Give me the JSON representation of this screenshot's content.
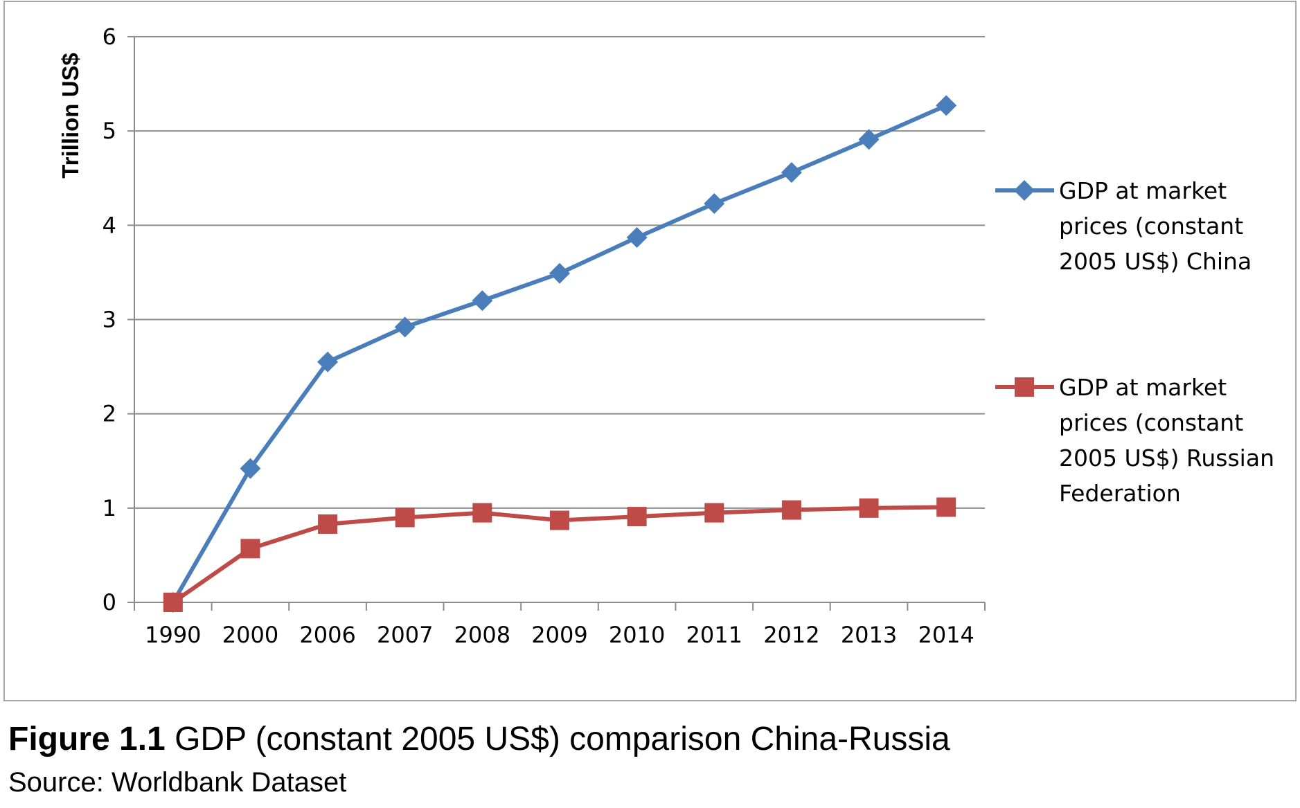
{
  "chart_data": {
    "type": "line",
    "title": "",
    "xlabel": "",
    "ylabel": "Trillion US$",
    "categories": [
      "1990",
      "2000",
      "2006",
      "2007",
      "2008",
      "2009",
      "2010",
      "2011",
      "2012",
      "2013",
      "2014"
    ],
    "ylim": [
      0,
      6
    ],
    "yticks": [
      0,
      1,
      2,
      3,
      4,
      5,
      6
    ],
    "grid": true,
    "legend_position": "right",
    "series": [
      {
        "name": "GDP at market prices (constant 2005 US$) China",
        "legend_lines": [
          "GDP at market",
          "prices (constant",
          "2005 US$) China"
        ],
        "color": "#4a7ebb",
        "marker": "diamond",
        "values": [
          0,
          1.42,
          2.55,
          2.92,
          3.2,
          3.49,
          3.87,
          4.23,
          4.56,
          4.91,
          5.27
        ]
      },
      {
        "name": "GDP at market prices (constant 2005 US$) Russian Federation",
        "legend_lines": [
          "GDP at market",
          "prices (constant",
          "2005 US$) Russian",
          "Federation"
        ],
        "color": "#be4b48",
        "marker": "square",
        "values": [
          0,
          0.57,
          0.83,
          0.9,
          0.95,
          0.87,
          0.91,
          0.95,
          0.98,
          1.0,
          1.01
        ]
      }
    ]
  },
  "caption": {
    "figure_label": "Figure 1.1",
    "figure_text": "GDP (constant 2005 US$) comparison China-Russia",
    "source": "Source: Worldbank Dataset"
  }
}
